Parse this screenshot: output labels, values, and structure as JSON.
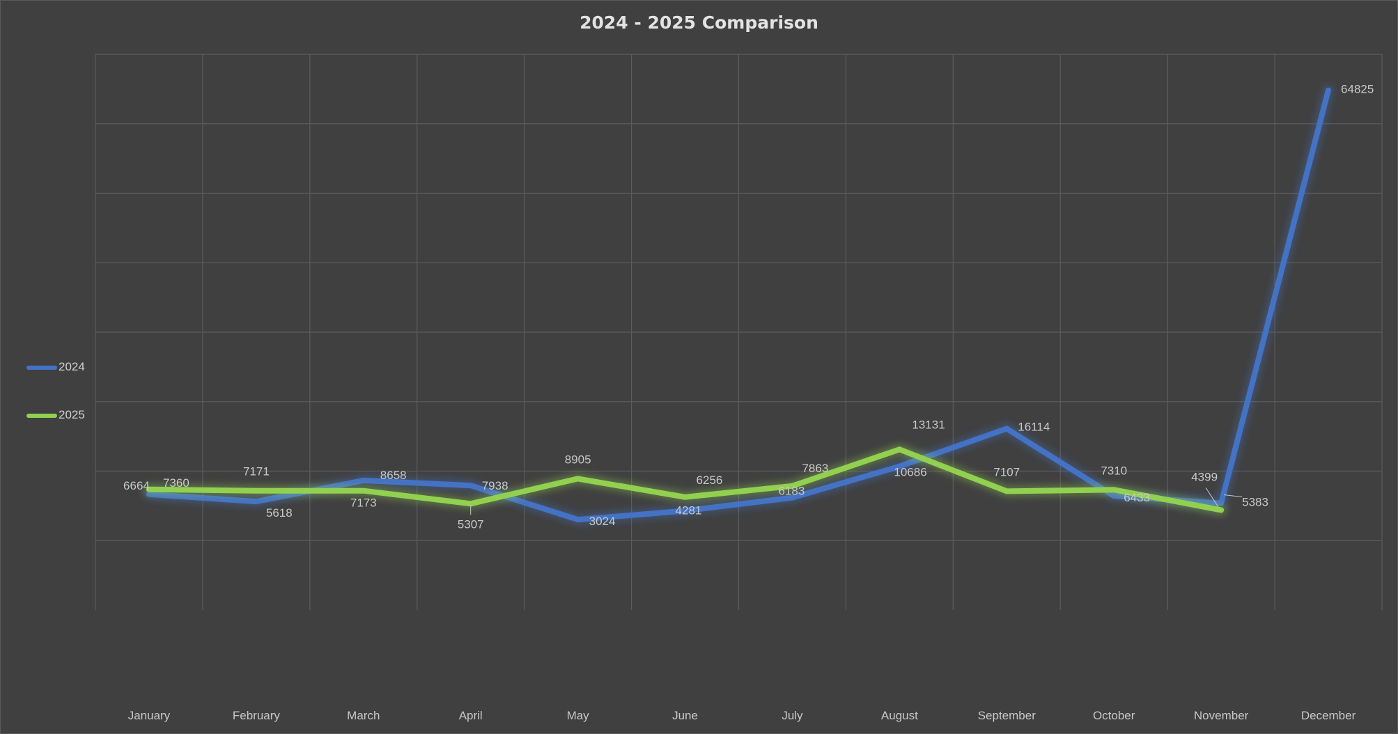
{
  "chart_data": {
    "type": "line",
    "title": "2024 - 2025 Comparison",
    "xlabel": "",
    "ylabel": "",
    "categories": [
      "January",
      "February",
      "March",
      "April",
      "May",
      "June",
      "July",
      "August",
      "September",
      "October",
      "November",
      "December"
    ],
    "series": [
      {
        "name": "2024",
        "color": "#4472C4",
        "values": [
          6664,
          5618,
          8658,
          7938,
          3024,
          4281,
          6183,
          10686,
          16114,
          6433,
          5383,
          64825
        ]
      },
      {
        "name": "2025",
        "color": "#92D050",
        "values": [
          7360,
          7171,
          7173,
          5307,
          8905,
          6256,
          7863,
          13131,
          7107,
          7310,
          4399,
          null
        ]
      }
    ],
    "ylim": [
      -10000,
      70000
    ],
    "grid": true,
    "legend": "left"
  }
}
